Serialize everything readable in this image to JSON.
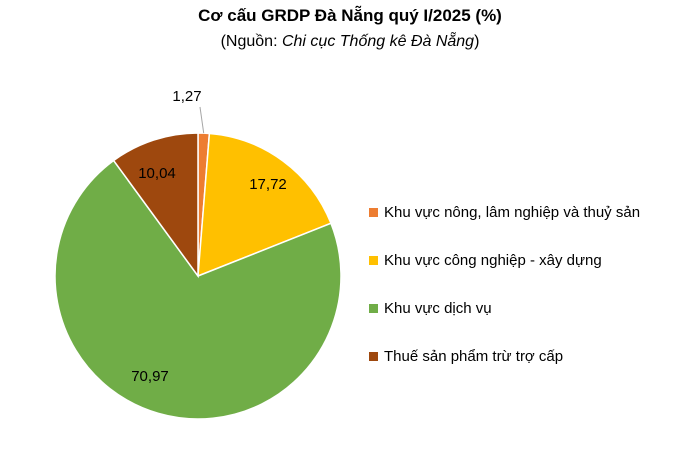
{
  "chart_data": {
    "type": "pie",
    "title": "Cơ cấu GRDP Đà Nẵng quý I/2025 (%)",
    "subtitle_prefix": "(Nguồn: ",
    "subtitle_source": "Chi cục Thống kê Đà Nẵng",
    "subtitle_suffix": ")",
    "legend_position": "right",
    "slices": [
      {
        "label": "Khu vực nông, lâm nghiệp và thuỷ sản",
        "value": 1.27,
        "value_label": "1,27",
        "color": "#ED7D31"
      },
      {
        "label": "Khu vực công nghiệp - xây dựng",
        "value": 17.72,
        "value_label": "17,72",
        "color": "#FFC000"
      },
      {
        "label": "Khu vực dịch vụ",
        "value": 70.97,
        "value_label": "70,97",
        "color": "#70AD47"
      },
      {
        "label": "Thuế sản phẩm trừ trợ cấp",
        "value": 10.04,
        "value_label": "10,04",
        "color": "#9E480E"
      }
    ]
  }
}
